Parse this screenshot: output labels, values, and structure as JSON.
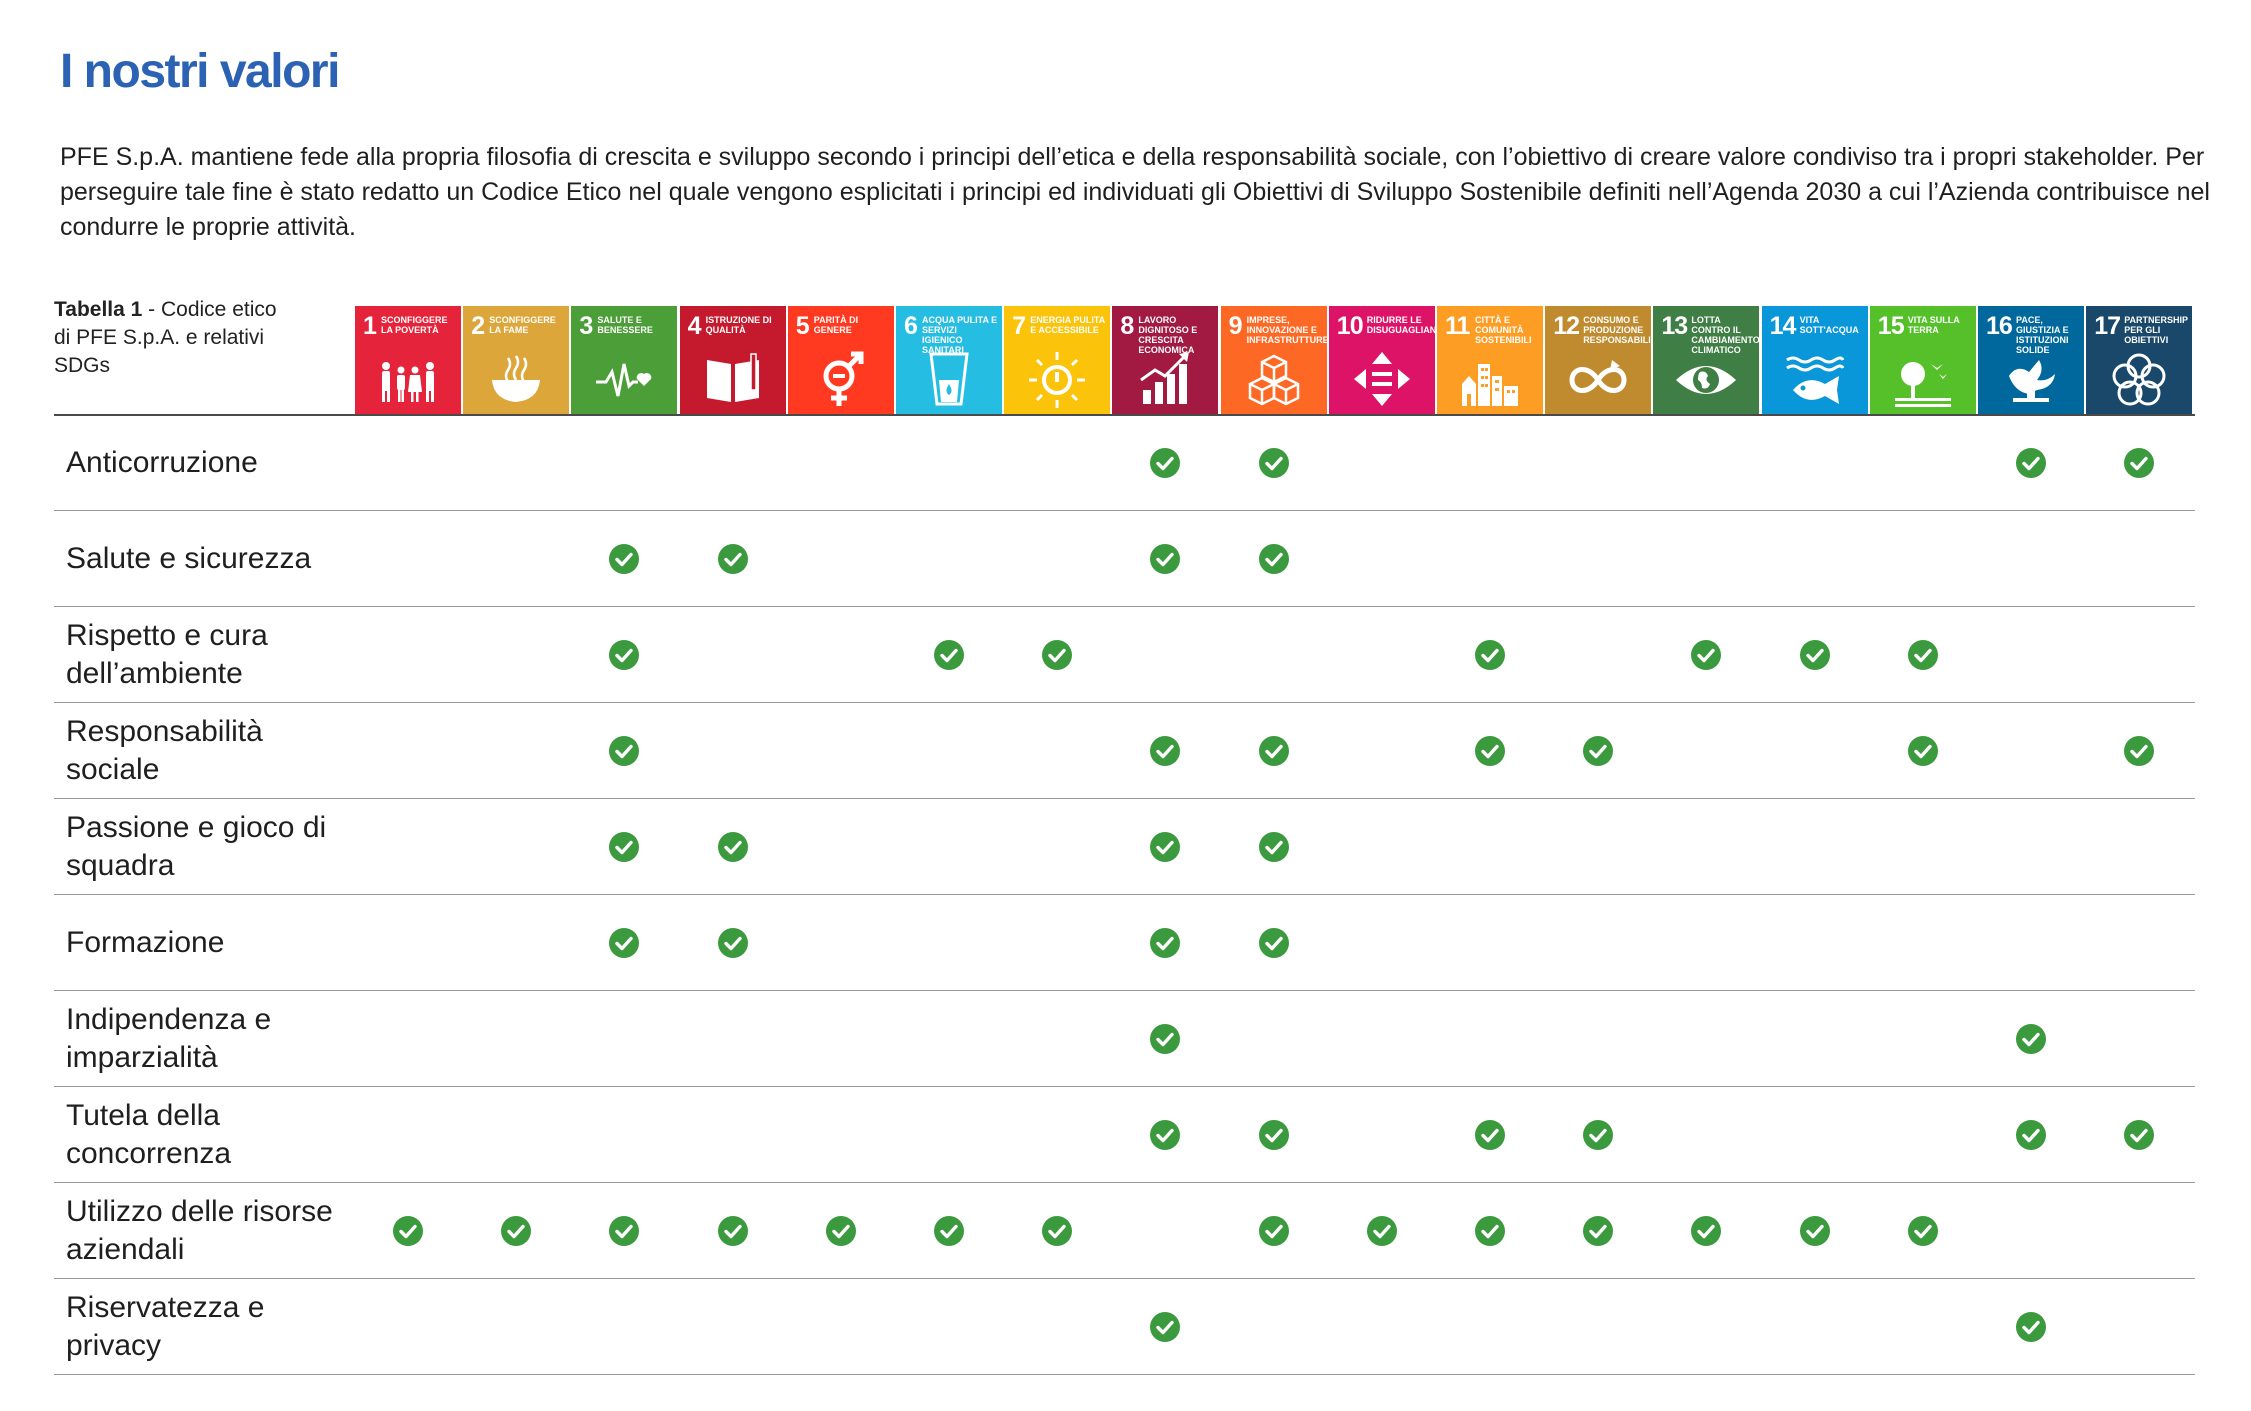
{
  "title": "I nostri valori",
  "intro": "PFE S.p.A. mantiene fede alla propria filosofia di crescita e sviluppo secondo i principi dell’etica e della responsabilità sociale, con l’obiettivo di creare valore condiviso tra i propri stakeholder. Per perseguire tale fine è stato redatto un Codice Etico nel quale vengono esplicitati i principi ed individuati gli Obiettivi di Sviluppo Sostenibile definiti nell’Agenda 2030 a cui l’Azienda contribuisce nel condurre le proprie attività.",
  "caption": {
    "bold": "Tabella 1",
    "rest": " - Codice etico di PFE S.p.A. e relativi SDGs"
  },
  "check_color": "#3c9a3e",
  "sdgs": [
    {
      "num": "1",
      "title": "Sconfiggere la povertà",
      "color": "#e5243b",
      "icon": "family-icon"
    },
    {
      "num": "2",
      "title": "Sconfiggere la fame",
      "color": "#dda63a",
      "icon": "bowl-icon"
    },
    {
      "num": "3",
      "title": "Salute e benessere",
      "color": "#4c9f38",
      "icon": "heartbeat-icon"
    },
    {
      "num": "4",
      "title": "Istruzione di qualità",
      "color": "#c5192d",
      "icon": "book-icon"
    },
    {
      "num": "5",
      "title": "Parità di genere",
      "color": "#ff3a21",
      "icon": "gender-icon"
    },
    {
      "num": "6",
      "title": "Acqua pulita e servizi igienico sanitari",
      "color": "#26bde2",
      "icon": "water-icon"
    },
    {
      "num": "7",
      "title": "Energia pulita e accessibile",
      "color": "#fcc30b",
      "icon": "sun-power-icon"
    },
    {
      "num": "8",
      "title": "Lavoro dignitoso e crescita economica",
      "color": "#a21942",
      "icon": "growth-chart-icon"
    },
    {
      "num": "9",
      "title": "Imprese, innovazione e infrastrutture",
      "color": "#fd6925",
      "icon": "cubes-icon"
    },
    {
      "num": "10",
      "title": "Ridurre le disuguaglianze",
      "color": "#dd1367",
      "icon": "equality-arrows-icon"
    },
    {
      "num": "11",
      "title": "Città e comunità sostenibili",
      "color": "#fd9d24",
      "icon": "buildings-icon"
    },
    {
      "num": "12",
      "title": "Consumo e produzione responsabili",
      "color": "#bf8b2e",
      "icon": "infinity-icon"
    },
    {
      "num": "13",
      "title": "Lotta contro il cambiamento climatico",
      "color": "#3f7e44",
      "icon": "eye-globe-icon"
    },
    {
      "num": "14",
      "title": "Vita sott'acqua",
      "color": "#0a97d9",
      "icon": "fish-icon"
    },
    {
      "num": "15",
      "title": "Vita sulla terra",
      "color": "#56c02b",
      "icon": "tree-bird-icon"
    },
    {
      "num": "16",
      "title": "Pace, giustizia e istituzioni solide",
      "color": "#00689d",
      "icon": "dove-icon"
    },
    {
      "num": "17",
      "title": "Partnership per gli obiettivi",
      "color": "#19486a",
      "icon": "flower-rings-icon"
    }
  ],
  "rows": [
    {
      "label": "Anticorruzione",
      "checks": [
        8,
        9,
        16,
        17
      ]
    },
    {
      "label": "Salute e sicurezza",
      "checks": [
        3,
        4,
        8,
        9
      ]
    },
    {
      "label": "Rispetto e cura dell’ambiente",
      "checks": [
        3,
        6,
        7,
        11,
        13,
        14,
        15
      ]
    },
    {
      "label": "Responsabilità sociale",
      "checks": [
        3,
        8,
        9,
        11,
        12,
        15,
        17
      ]
    },
    {
      "label": "Passione e gioco di squadra",
      "checks": [
        3,
        4,
        8,
        9
      ]
    },
    {
      "label": "Formazione",
      "checks": [
        3,
        4,
        8,
        9
      ]
    },
    {
      "label": "Indipendenza e imparzialità",
      "checks": [
        8,
        16
      ]
    },
    {
      "label": "Tutela della concorrenza",
      "checks": [
        8,
        9,
        11,
        12,
        16,
        17
      ]
    },
    {
      "label": "Utilizzo delle risorse aziendali",
      "checks": [
        1,
        2,
        3,
        4,
        5,
        6,
        7,
        9,
        10,
        11,
        12,
        13,
        14,
        15
      ]
    },
    {
      "label": "Riservatezza e privacy",
      "checks": [
        8,
        16
      ]
    }
  ]
}
